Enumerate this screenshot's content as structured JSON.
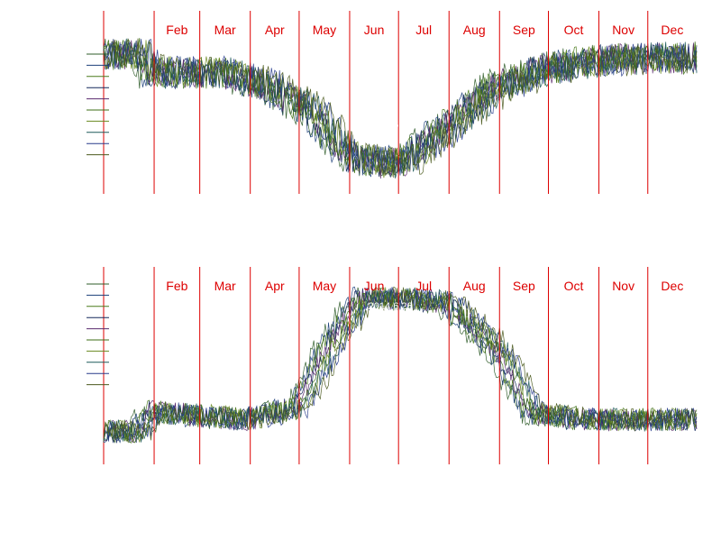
{
  "colors": {
    "month_line": "#dd0000",
    "month_text": "#dd0000",
    "annotation_text": "#ffffff",
    "series": [
      "#2f5d2a",
      "#1c3f7a",
      "#4a7a1c",
      "#14285c",
      "#5a2a6e",
      "#3c6e14",
      "#6a8a20",
      "#1e5a5a",
      "#283c8c",
      "#4b5a1e"
    ]
  },
  "chart_data": [
    {
      "type": "line",
      "title": "",
      "xlabel": "",
      "ylabel": "",
      "x_unit": "day_of_year",
      "xlim": [
        1,
        365
      ],
      "ylim": [
        0,
        1
      ],
      "grid": false,
      "legend": "left",
      "month_labels": [
        "Feb",
        "Mar",
        "Apr",
        "May",
        "Jun",
        "Jul",
        "Aug",
        "Sep",
        "Oct",
        "Nov",
        "Dec"
      ],
      "month_starts": [
        32,
        60,
        91,
        121,
        152,
        182,
        213,
        244,
        274,
        305,
        335
      ],
      "annotation": {
        "text": "2014 6 26",
        "day": 177
      },
      "series_count": 10,
      "profile_days": [
        1,
        25,
        32,
        60,
        75,
        100,
        130,
        152,
        175,
        190,
        213,
        244,
        274,
        300,
        335,
        365
      ],
      "profile_values": [
        0.76,
        0.76,
        0.66,
        0.66,
        0.66,
        0.6,
        0.45,
        0.2,
        0.16,
        0.18,
        0.36,
        0.58,
        0.68,
        0.72,
        0.74,
        0.74
      ],
      "noise": 0.09
    },
    {
      "type": "line",
      "title": "",
      "xlabel": "",
      "ylabel": "",
      "x_unit": "day_of_year",
      "xlim": [
        1,
        365
      ],
      "ylim": [
        0,
        1
      ],
      "grid": false,
      "legend": "left",
      "month_labels": [
        "Feb",
        "Mar",
        "Apr",
        "May",
        "Jun",
        "Jul",
        "Aug",
        "Sep",
        "Oct",
        "Nov",
        "Dec"
      ],
      "month_starts": [
        32,
        60,
        91,
        121,
        152,
        182,
        213,
        244,
        274,
        305,
        335
      ],
      "annotation": {
        "text": "2014 6 26",
        "day": 177
      },
      "series_count": 10,
      "profile_days": [
        1,
        25,
        32,
        60,
        91,
        121,
        140,
        160,
        182,
        213,
        244,
        265,
        274,
        305,
        335,
        365
      ],
      "profile_values": [
        0.16,
        0.16,
        0.26,
        0.24,
        0.22,
        0.28,
        0.58,
        0.84,
        0.84,
        0.82,
        0.58,
        0.26,
        0.24,
        0.22,
        0.22,
        0.22
      ],
      "noise": 0.06
    }
  ]
}
